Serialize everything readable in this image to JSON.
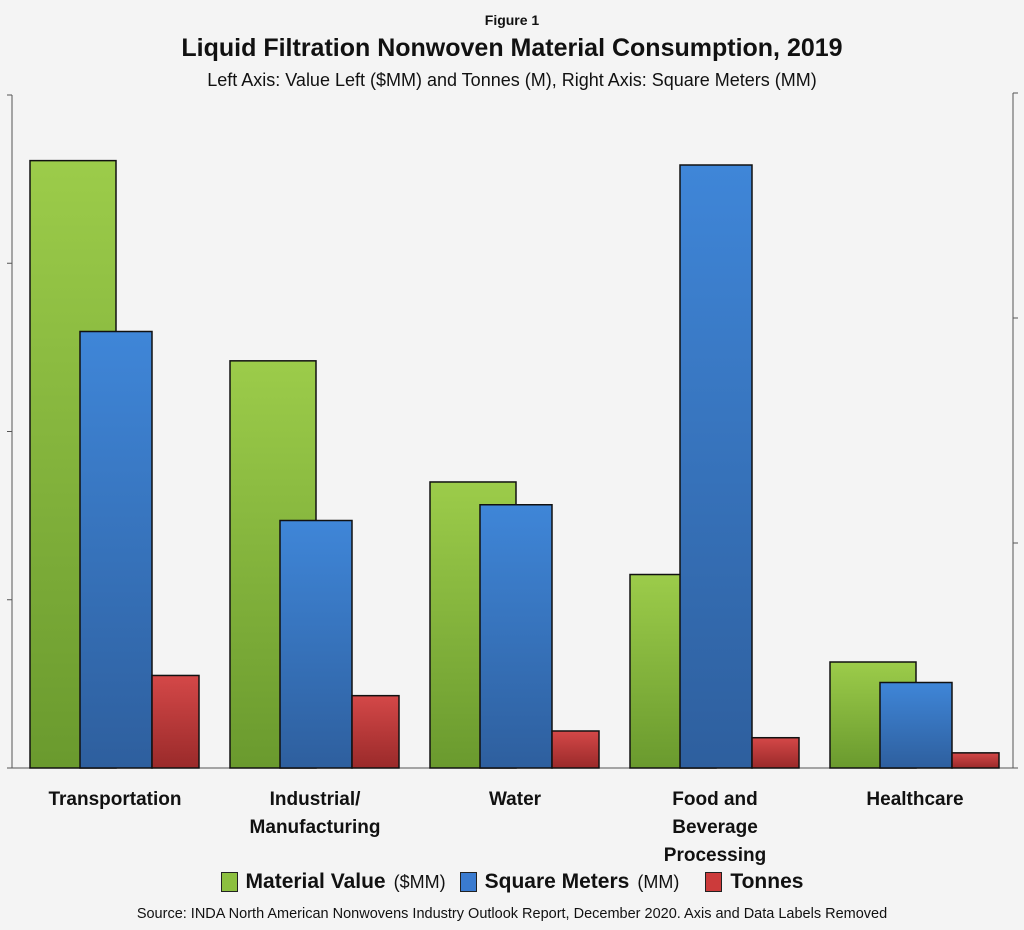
{
  "chart_data": {
    "type": "bar",
    "figure_label": "Figure 1",
    "title": "Liquid Filtration Nonwoven Material Consumption, 2019",
    "subtitle": "Left Axis: Value Left ($MM) and Tonnes (M), Right Axis: Square Meters (MM)",
    "categories": [
      "Transportation",
      "Industrial/\nManufacturing",
      "Water",
      "Food and\nBeverage\nProcessing",
      "Healthcare"
    ],
    "left_axis": {
      "ticks": 4,
      "tick_labels_shown": false,
      "ylim": [
        0,
        4
      ]
    },
    "right_axis": {
      "ticks": 3,
      "tick_labels_shown": false,
      "ylim": [
        0,
        3
      ]
    },
    "series": [
      {
        "name": "Material Value",
        "unit": "($MM)",
        "axis": "left",
        "color": "#8cbf3f",
        "values": [
          3.61,
          2.42,
          1.7,
          1.15,
          0.63
        ]
      },
      {
        "name": "Square Meters",
        "unit": "(MM)",
        "axis": "right",
        "color": "#3a7bd0",
        "values": [
          1.94,
          1.1,
          1.17,
          2.68,
          0.38
        ]
      },
      {
        "name": "Tonnes",
        "unit": "",
        "axis": "left",
        "color": "#cc3b3b",
        "values": [
          0.55,
          0.43,
          0.22,
          0.18,
          0.09
        ]
      }
    ],
    "grid": false,
    "legend_placement": "bottom",
    "source": "Source: INDA North American Nonwovens Industry Outlook Report, December 2020. Axis and Data Labels Removed"
  }
}
